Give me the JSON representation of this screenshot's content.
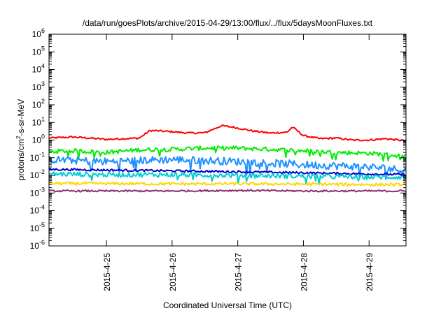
{
  "chart_data": {
    "type": "line",
    "title": "/data/run/goesPlots/archive/2015-04-29/13:00/flux/../flux/5daysMoonFluxes.txt",
    "xlabel": "Coordinated Universal Time (UTC)",
    "ylabel": {
      "base": "protons/cm",
      "sup": "2",
      "rest": "-s-sr-MeV"
    },
    "yscale": "log",
    "ylim": [
      1e-06,
      1000000.0
    ],
    "y_ticks": [
      {
        "value": 1e-06,
        "base": "10",
        "exp": "-6"
      },
      {
        "value": 1e-05,
        "base": "10",
        "exp": "-5"
      },
      {
        "value": 0.0001,
        "base": "10",
        "exp": "-4"
      },
      {
        "value": 0.001,
        "base": "10",
        "exp": "-3"
      },
      {
        "value": 0.01,
        "base": "10",
        "exp": "-2"
      },
      {
        "value": 0.1,
        "base": "10",
        "exp": "-1"
      },
      {
        "value": 1,
        "base": "10",
        "exp": "0"
      },
      {
        "value": 10.0,
        "base": "10",
        "exp": "1"
      },
      {
        "value": 100.0,
        "base": "10",
        "exp": "2"
      },
      {
        "value": 1000.0,
        "base": "10",
        "exp": "3"
      },
      {
        "value": 10000.0,
        "base": "10",
        "exp": "4"
      },
      {
        "value": 100000.0,
        "base": "10",
        "exp": "5"
      },
      {
        "value": 1000000.0,
        "base": "10",
        "exp": "6"
      }
    ],
    "xlim": [
      "2015-04-24T03:00",
      "2015-04-29T13:30"
    ],
    "x_ticks": [
      {
        "value": "2015-04-25T00:00",
        "label": "2015-4-25"
      },
      {
        "value": "2015-04-26T00:00",
        "label": "2015-4-26"
      },
      {
        "value": "2015-04-27T00:00",
        "label": "2015-4-27"
      },
      {
        "value": "2015-04-28T00:00",
        "label": "2015-4-28"
      },
      {
        "value": "2015-04-29T00:00",
        "label": "2015-4-29"
      }
    ],
    "grid": false,
    "series": [
      {
        "color": "#ff0000",
        "noise": 0.05,
        "points": [
          [
            "2015-04-24T03:00",
            1.3
          ],
          [
            "2015-04-24T12:00",
            1.5
          ],
          [
            "2015-04-25T00:00",
            1.1
          ],
          [
            "2015-04-25T12:00",
            1.3
          ],
          [
            "2015-04-25T16:00",
            3.5
          ],
          [
            "2015-04-26T00:00",
            3.0
          ],
          [
            "2015-04-26T06:00",
            2.5
          ],
          [
            "2015-04-26T12:00",
            2.6
          ],
          [
            "2015-04-26T18:00",
            6.5
          ],
          [
            "2015-04-26T22:00",
            5.5
          ],
          [
            "2015-04-27T06:00",
            3.2
          ],
          [
            "2015-04-27T12:00",
            2.5
          ],
          [
            "2015-04-27T18:00",
            2.8
          ],
          [
            "2015-04-27T20:00",
            5.5
          ],
          [
            "2015-04-28T00:00",
            1.8
          ],
          [
            "2015-04-28T06:00",
            1.2
          ],
          [
            "2015-04-28T12:00",
            1.3
          ],
          [
            "2015-04-28T18:00",
            1.0
          ],
          [
            "2015-04-29T00:00",
            1.0
          ],
          [
            "2015-04-29T06:00",
            1.2
          ],
          [
            "2015-04-29T13:30",
            0.9
          ]
        ]
      },
      {
        "color": "#00ee00",
        "noise": 0.12,
        "points": [
          [
            "2015-04-24T03:00",
            0.22
          ],
          [
            "2015-04-24T12:00",
            0.25
          ],
          [
            "2015-04-25T00:00",
            0.2
          ],
          [
            "2015-04-25T12:00",
            0.28
          ],
          [
            "2015-04-26T00:00",
            0.3
          ],
          [
            "2015-04-26T12:00",
            0.35
          ],
          [
            "2015-04-27T00:00",
            0.35
          ],
          [
            "2015-04-27T12:00",
            0.3
          ],
          [
            "2015-04-28T00:00",
            0.25
          ],
          [
            "2015-04-28T12:00",
            0.2
          ],
          [
            "2015-04-29T00:00",
            0.18
          ],
          [
            "2015-04-29T13:30",
            0.12
          ]
        ]
      },
      {
        "color": "#1e90ff",
        "noise": 0.22,
        "points": [
          [
            "2015-04-24T03:00",
            0.08
          ],
          [
            "2015-04-25T00:00",
            0.06
          ],
          [
            "2015-04-25T12:00",
            0.07
          ],
          [
            "2015-04-26T00:00",
            0.08
          ],
          [
            "2015-04-26T12:00",
            0.07
          ],
          [
            "2015-04-27T00:00",
            0.06
          ],
          [
            "2015-04-27T12:00",
            0.05
          ],
          [
            "2015-04-28T00:00",
            0.04
          ],
          [
            "2015-04-28T12:00",
            0.035
          ],
          [
            "2015-04-29T00:00",
            0.03
          ],
          [
            "2015-04-29T13:30",
            0.02
          ]
        ]
      },
      {
        "color": "#0000cd",
        "noise": 0.06,
        "points": [
          [
            "2015-04-24T03:00",
            0.022
          ],
          [
            "2015-04-25T00:00",
            0.02
          ],
          [
            "2015-04-26T00:00",
            0.018
          ],
          [
            "2015-04-27T00:00",
            0.016
          ],
          [
            "2015-04-28T00:00",
            0.014
          ],
          [
            "2015-04-29T00:00",
            0.012
          ],
          [
            "2015-04-29T13:30",
            0.011
          ]
        ]
      },
      {
        "color": "#00ced1",
        "noise": 0.14,
        "points": [
          [
            "2015-04-24T03:00",
            0.012
          ],
          [
            "2015-04-25T00:00",
            0.011
          ],
          [
            "2015-04-26T00:00",
            0.011
          ],
          [
            "2015-04-27T00:00",
            0.01
          ],
          [
            "2015-04-28T00:00",
            0.009
          ],
          [
            "2015-04-29T00:00",
            0.008
          ],
          [
            "2015-04-29T13:30",
            0.008
          ]
        ]
      },
      {
        "color": "#ffd700",
        "noise": 0.08,
        "points": [
          [
            "2015-04-24T03:00",
            0.0035
          ],
          [
            "2015-04-25T00:00",
            0.0034
          ],
          [
            "2015-04-26T00:00",
            0.0033
          ],
          [
            "2015-04-27T00:00",
            0.0033
          ],
          [
            "2015-04-28T00:00",
            0.0032
          ],
          [
            "2015-04-29T00:00",
            0.003
          ],
          [
            "2015-04-29T13:30",
            0.003
          ]
        ]
      },
      {
        "color": "#8b2f6e",
        "noise": 0.05,
        "points": [
          [
            "2015-04-24T03:00",
            0.0013
          ],
          [
            "2015-04-25T00:00",
            0.0013
          ],
          [
            "2015-04-26T00:00",
            0.0013
          ],
          [
            "2015-04-27T00:00",
            0.0014
          ],
          [
            "2015-04-28T00:00",
            0.0013
          ],
          [
            "2015-04-29T00:00",
            0.0013
          ],
          [
            "2015-04-29T13:30",
            0.0013
          ]
        ]
      }
    ]
  }
}
